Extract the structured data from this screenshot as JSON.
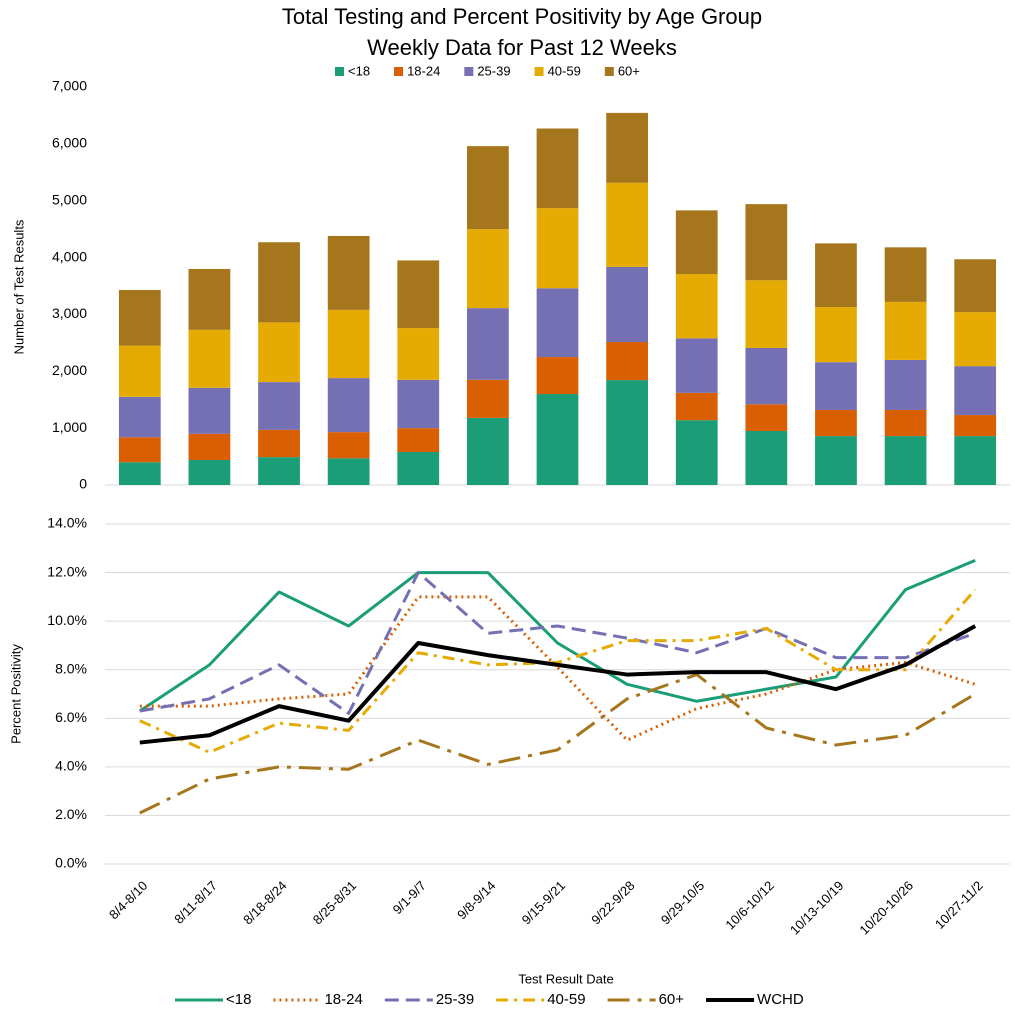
{
  "chart_data": [
    {
      "type": "bar",
      "stacked": true,
      "title": "Total Testing and Percent Positivity by Age Group",
      "subtitle": "Weekly Data for Past 12 Weeks",
      "ylabel": "Number of Test Results",
      "legend": "top",
      "ylim": [
        0,
        7000
      ],
      "yticks": [
        0,
        {
          "value": 1000,
          "label": "1,000"
        },
        {
          "value": 2000,
          "label": "2,000"
        },
        {
          "value": 3000,
          "label": "3,000"
        },
        {
          "value": 4000,
          "label": "4,000"
        },
        {
          "value": 5000,
          "label": "5,000"
        },
        {
          "value": 6000,
          "label": "6,000"
        },
        {
          "value": 7000,
          "label": "7,000"
        }
      ],
      "series": [
        {
          "name": "<18",
          "color": "#1b9e77",
          "values": [
            400,
            440,
            490,
            470,
            580,
            1180,
            1600,
            1845,
            1140,
            950,
            860,
            860,
            860
          ]
        },
        {
          "name": "18-24",
          "color": "#d95f02",
          "values": [
            440,
            460,
            480,
            460,
            420,
            670,
            650,
            670,
            480,
            470,
            460,
            460,
            370
          ]
        },
        {
          "name": "25-39",
          "color": "#7570b3",
          "values": [
            710,
            810,
            840,
            950,
            850,
            1260,
            1210,
            1320,
            960,
            990,
            840,
            880,
            860
          ]
        },
        {
          "name": "40-59",
          "color": "#e6ab02",
          "values": [
            900,
            1020,
            1050,
            1200,
            910,
            1390,
            1410,
            1480,
            1130,
            1190,
            970,
            1020,
            950
          ]
        },
        {
          "name": "60+",
          "color": "#a6761d",
          "values": [
            980,
            1070,
            1410,
            1300,
            1190,
            1460,
            1400,
            1230,
            1120,
            1340,
            1120,
            960,
            930
          ]
        }
      ]
    },
    {
      "type": "line",
      "xlabel": "Test Result Date",
      "ylabel": "Percent Positivity",
      "legend": "bottom",
      "categories": [
        "8/4-8/10",
        "8/11-8/17",
        "8/18-8/24",
        "8/25-8/31",
        "9/1-9/7",
        "9/8-9/14",
        "9/15-9/21",
        "9/22-9/28",
        "9/29-10/5",
        "10/6-10/12",
        "10/13-10/19",
        "10/20-10/26",
        "10/27-11/2"
      ],
      "ylim": [
        0,
        14
      ],
      "yticks": [
        {
          "value": 0,
          "label": "0.0%"
        },
        {
          "value": 2,
          "label": "2.0%"
        },
        {
          "value": 4,
          "label": "4.0%"
        },
        {
          "value": 6,
          "label": "6.0%"
        },
        {
          "value": 8,
          "label": "8.0%"
        },
        {
          "value": 10,
          "label": "10.0%"
        },
        {
          "value": 12,
          "label": "12.0%"
        },
        {
          "value": 14,
          "label": "14.0%"
        }
      ],
      "series": [
        {
          "name": "<18",
          "color": "#1b9e77",
          "dash": "solid",
          "values": [
            6.3,
            8.2,
            11.2,
            9.8,
            12.0,
            12.0,
            9.1,
            7.4,
            6.7,
            7.2,
            7.7,
            11.3,
            12.5
          ]
        },
        {
          "name": "18-24",
          "color": "#d95f02",
          "dash": "dotted",
          "values": [
            6.5,
            6.5,
            6.8,
            7.0,
            11.0,
            11.0,
            8.1,
            5.1,
            6.4,
            7.0,
            8.0,
            8.3,
            7.4
          ]
        },
        {
          "name": "25-39",
          "color": "#7570b3",
          "dash": "dashed",
          "values": [
            6.3,
            6.8,
            8.2,
            6.2,
            12.0,
            9.5,
            9.8,
            9.3,
            8.7,
            9.7,
            8.5,
            8.5,
            9.5
          ]
        },
        {
          "name": "40-59",
          "color": "#e6ab02",
          "dash": "dash-dot",
          "values": [
            5.9,
            4.6,
            5.8,
            5.5,
            8.7,
            8.2,
            8.3,
            9.2,
            9.2,
            9.7,
            8.0,
            8.0,
            11.3
          ]
        },
        {
          "name": "60+",
          "color": "#a6761d",
          "dash": "long-dash-dot",
          "values": [
            2.1,
            3.5,
            4.0,
            3.9,
            5.1,
            4.1,
            4.7,
            6.8,
            7.8,
            5.6,
            4.9,
            5.3,
            7.0
          ]
        },
        {
          "name": "WCHD",
          "color": "#000000",
          "dash": "solid-bold",
          "values": [
            5.0,
            5.3,
            6.5,
            5.9,
            9.1,
            8.6,
            8.2,
            7.8,
            7.9,
            7.9,
            7.2,
            8.2,
            9.8
          ]
        }
      ]
    }
  ]
}
